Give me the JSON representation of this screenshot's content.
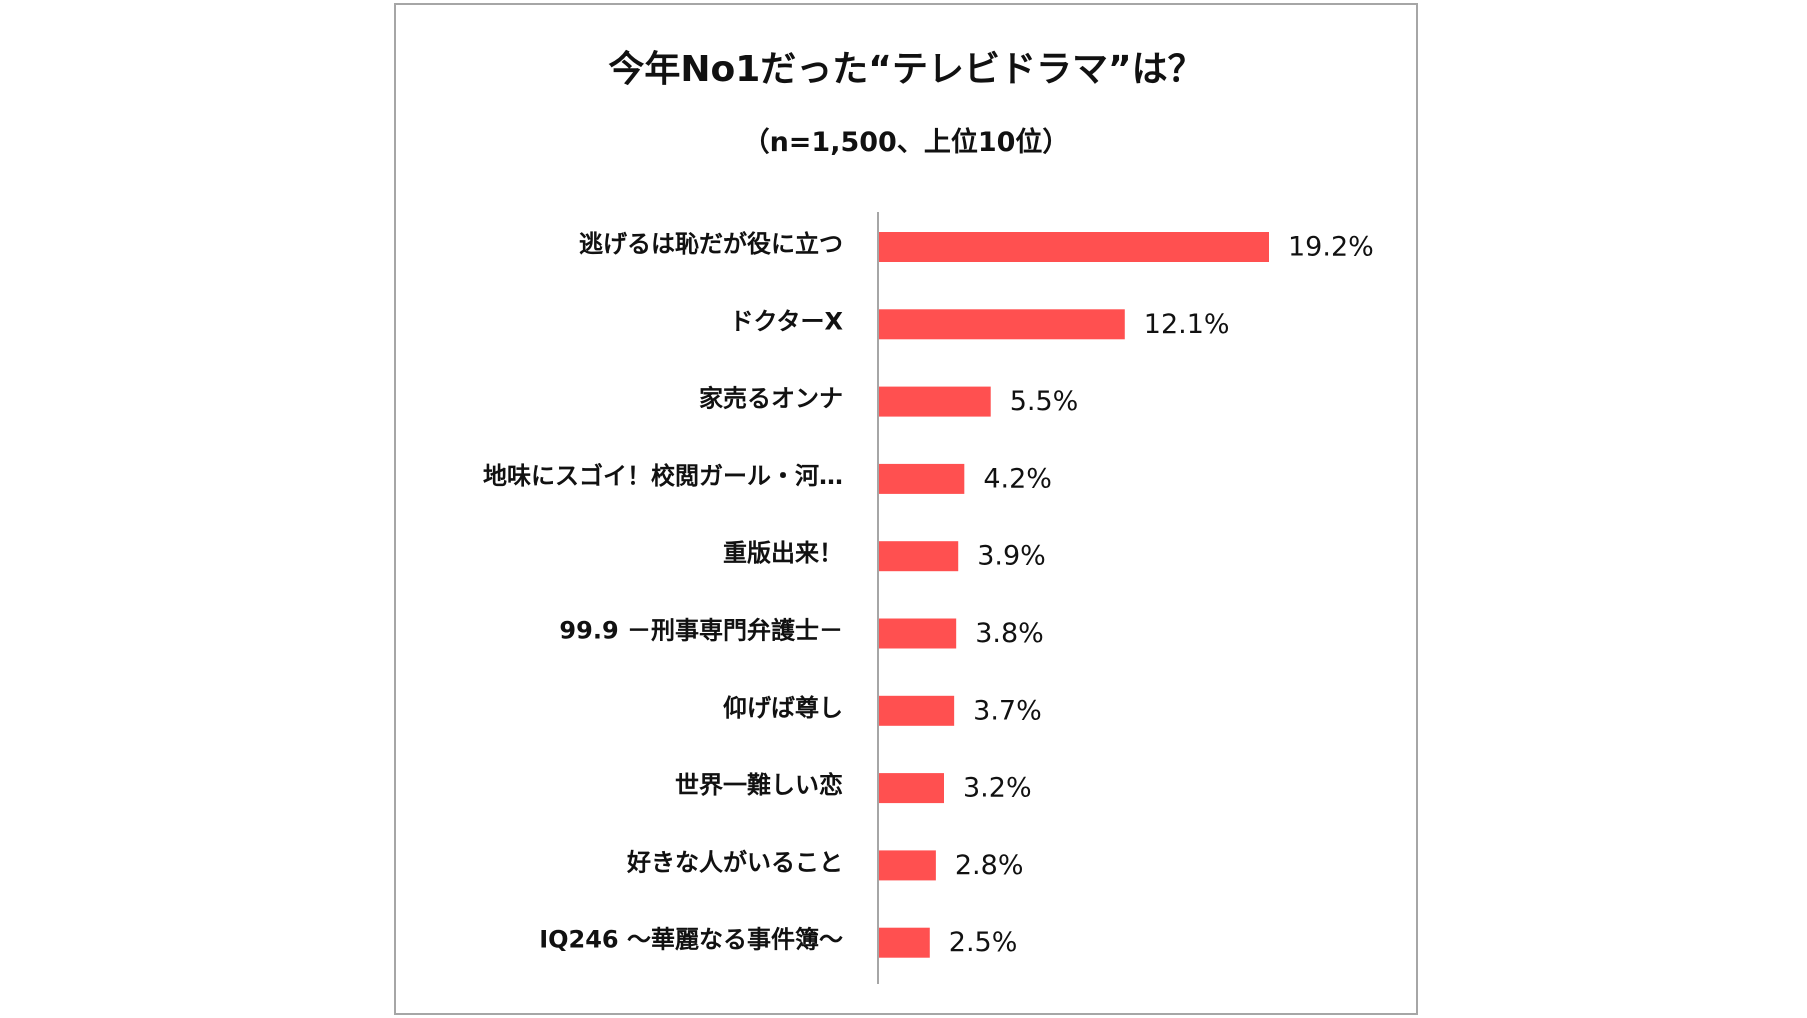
{
  "chart_data": {
    "type": "bar",
    "orientation": "horizontal",
    "title": "今年No1だった“テレビドラマ”は？",
    "subtitle": "（n=1,500、上位10位）",
    "categories": [
      "逃げるは恥だが役に立つ",
      "ドクターX",
      "家売るオンナ",
      "地味にスゴイ！校閲ガール・河…",
      "重版出来！",
      "99.9 －刑事専門弁護士－",
      "仰げば尊し",
      "世界一難しい恋",
      "好きな人がいること",
      "IQ246 ～華麗なる事件簿～"
    ],
    "values": [
      19.2,
      12.1,
      5.5,
      4.2,
      3.9,
      3.8,
      3.7,
      3.2,
      2.8,
      2.5
    ],
    "value_labels": [
      "19.2%",
      "12.1%",
      "5.5%",
      "4.2%",
      "3.9%",
      "3.8%",
      "3.7%",
      "3.2%",
      "2.8%",
      "2.5%"
    ],
    "bar_color": "#FF5050",
    "grid": false,
    "legend": "none"
  }
}
